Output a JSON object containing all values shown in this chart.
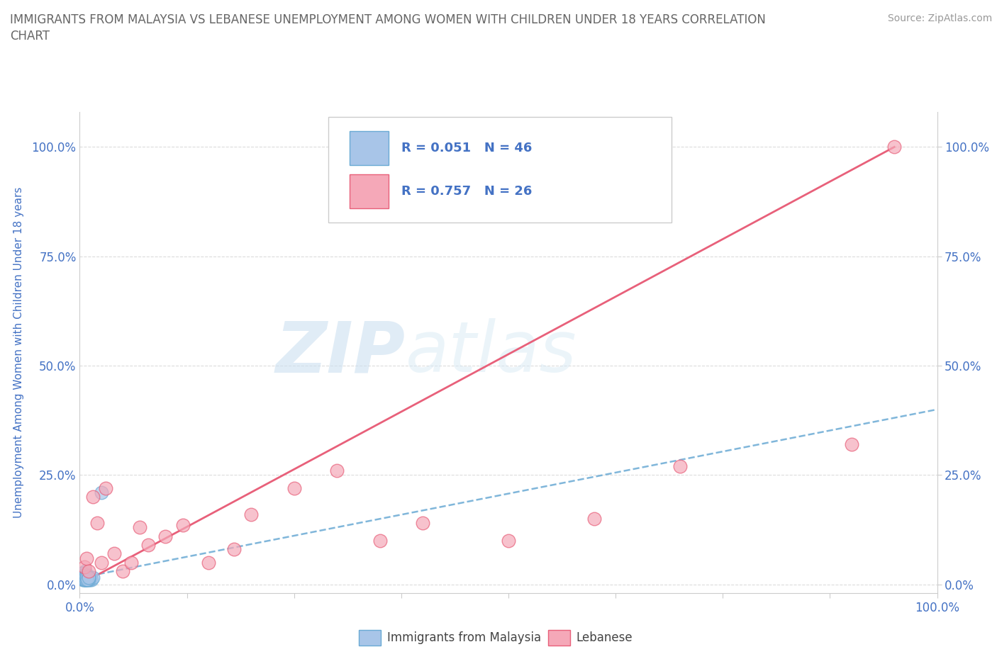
{
  "title_line1": "IMMIGRANTS FROM MALAYSIA VS LEBANESE UNEMPLOYMENT AMONG WOMEN WITH CHILDREN UNDER 18 YEARS CORRELATION",
  "title_line2": "CHART",
  "source": "Source: ZipAtlas.com",
  "ylabel": "Unemployment Among Women with Children Under 18 years",
  "ytick_labels": [
    "0.0%",
    "25.0%",
    "50.0%",
    "75.0%",
    "100.0%"
  ],
  "ytick_values": [
    0,
    25,
    50,
    75,
    100
  ],
  "xlim": [
    0,
    100
  ],
  "ylim": [
    -2,
    108
  ],
  "watermark_zip": "ZIP",
  "watermark_atlas": "atlas",
  "legend_r1": "R = 0.051",
  "legend_n1": "N = 46",
  "legend_r2": "R = 0.757",
  "legend_n2": "N = 26",
  "blue_color": "#a8c5e8",
  "pink_color": "#f5a8b8",
  "line_blue_color": "#6aaad4",
  "line_pink_color": "#e8607a",
  "text_blue_color": "#4472c4",
  "title_color": "#666666",
  "source_color": "#999999",
  "grid_color": "#cccccc",
  "bg_color": "#ffffff",
  "malaysia_x": [
    0.3,
    0.4,
    0.5,
    0.6,
    0.7,
    0.8,
    0.9,
    1.0,
    1.1,
    1.2,
    1.3,
    1.4,
    1.5,
    0.2,
    0.3,
    0.4,
    0.5,
    0.6,
    0.7,
    0.8,
    0.9,
    1.0,
    0.3,
    0.4,
    0.5,
    0.6,
    0.7,
    0.8,
    0.4,
    0.5,
    0.6,
    0.3,
    0.4,
    0.5,
    0.6,
    0.7,
    0.8,
    0.9,
    1.0,
    0.5,
    0.6,
    0.7,
    0.8,
    0.9,
    1.0,
    2.5
  ],
  "malaysia_y": [
    1.5,
    2.0,
    2.5,
    3.0,
    1.0,
    1.5,
    2.0,
    1.0,
    1.5,
    1.0,
    1.5,
    1.0,
    1.5,
    2.0,
    1.5,
    1.0,
    1.5,
    1.0,
    1.5,
    1.0,
    1.5,
    1.0,
    2.5,
    2.0,
    1.5,
    1.5,
    1.0,
    1.5,
    1.0,
    1.5,
    1.0,
    1.5,
    1.5,
    1.5,
    1.0,
    1.5,
    1.5,
    1.0,
    1.5,
    1.0,
    1.5,
    1.0,
    1.5,
    1.0,
    1.5,
    21.0
  ],
  "lebanese_x": [
    0.5,
    0.8,
    1.0,
    1.5,
    2.0,
    2.5,
    3.0,
    4.0,
    5.0,
    6.0,
    7.0,
    8.0,
    10.0,
    12.0,
    15.0,
    18.0,
    20.0,
    25.0,
    30.0,
    35.0,
    40.0,
    50.0,
    60.0,
    70.0,
    90.0,
    95.0
  ],
  "lebanese_y": [
    4.0,
    6.0,
    3.0,
    20.0,
    14.0,
    5.0,
    22.0,
    7.0,
    3.0,
    5.0,
    13.0,
    9.0,
    11.0,
    13.5,
    5.0,
    8.0,
    16.0,
    22.0,
    26.0,
    10.0,
    14.0,
    10.0,
    15.0,
    27.0,
    32.0,
    100.0
  ],
  "blue_line_x0": 0,
  "blue_line_y0": 1.5,
  "blue_line_x1": 100,
  "blue_line_y1": 40,
  "pink_line_x0": 0,
  "pink_line_y0": 0,
  "pink_line_x1": 95,
  "pink_line_y1": 100
}
